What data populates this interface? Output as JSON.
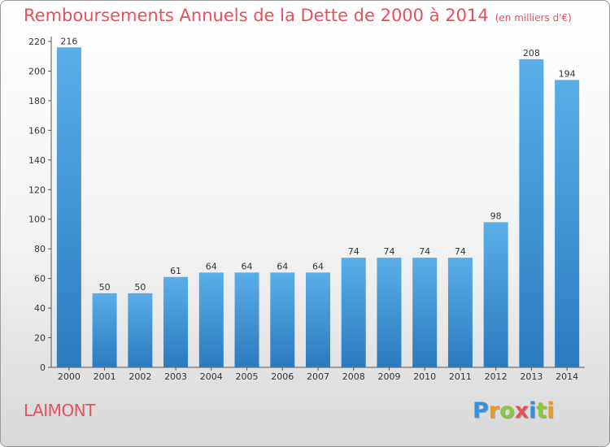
{
  "header": {
    "title": "Remboursements Annuels de la Dette de 2000 à 2014",
    "unit": "(en milliers d'€)"
  },
  "place_name": "LAIMONT",
  "brand": {
    "letters": [
      "P",
      "r",
      "o",
      "x",
      "i",
      "t",
      "i"
    ],
    "colors": [
      "#3a8fd6",
      "#f29a1e",
      "#8cc63f",
      "#e8505b",
      "#3a8fd6",
      "#8cc63f",
      "#f29a1e"
    ]
  },
  "chart_data": {
    "type": "bar",
    "title": "Remboursements Annuels de la Dette de 2000 à 2014",
    "categories": [
      "2000",
      "2001",
      "2002",
      "2003",
      "2004",
      "2005",
      "2006",
      "2007",
      "2008",
      "2009",
      "2010",
      "2011",
      "2012",
      "2013",
      "2014"
    ],
    "values": [
      216,
      50,
      50,
      61,
      64,
      64,
      64,
      64,
      74,
      74,
      74,
      74,
      98,
      208,
      194
    ],
    "ylim": [
      0,
      220
    ],
    "yticks": [
      0,
      20,
      40,
      60,
      80,
      100,
      120,
      140,
      160,
      180,
      200,
      220
    ],
    "grid": false,
    "bar_color_top": "#5aaee8",
    "bar_color_bottom": "#2a7bbf"
  }
}
